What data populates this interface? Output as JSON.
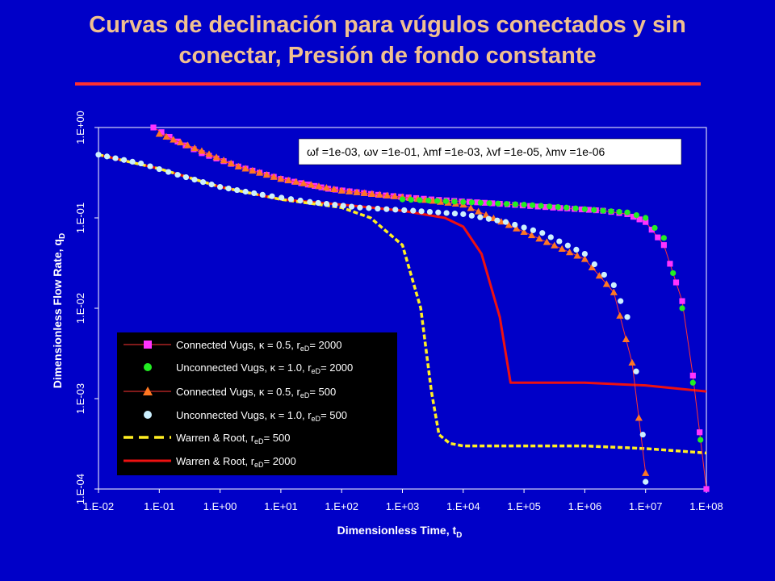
{
  "title_line1": "Curvas de declinación para vúgulos conectados y sin",
  "title_line2": "conectar,   Presión de fondo constante",
  "chart_data": {
    "type": "scatter",
    "title": "Curvas de declinación para vúgulos conectados y sin conectar,   Presión de fondo constante",
    "xlabel": "Dimensionless Time, t",
    "xlabel_sub": "D",
    "ylabel": "Dimensionless Flow Rate, q",
    "ylabel_sub": "D",
    "x_scale": "log",
    "y_scale": "log",
    "xlim": [
      0.01,
      100000000
    ],
    "ylim": [
      0.0001,
      1
    ],
    "x_ticks": [
      "1.E-02",
      "1.E-01",
      "1.E+00",
      "1.E+01",
      "1.E+02",
      "1.E+03",
      "1.E+04",
      "1.E+05",
      "1.E+06",
      "1.E+07",
      "1.E+08"
    ],
    "y_ticks": [
      "1.E-04",
      "1.E-03",
      "1.E-02",
      "1.E-01",
      "1.E+00"
    ],
    "grid": false,
    "annotation": "ωf =1e-03, ωv =1e-01, λmf =1e-03, λvf =1e-05, λmv =1e-06",
    "legend_position": "bottom-left",
    "series": [
      {
        "name": "Connected Vugs,    κ = 0.5, r",
        "name_sub": "eD",
        "name_tail": "= 2000",
        "marker": "square",
        "line": "thin",
        "color": "#ff33ff",
        "line_color": "#ff3333",
        "x": [
          0.08,
          0.2,
          0.5,
          2,
          10,
          60,
          400,
          3000,
          30000,
          300000,
          2000000,
          5000000,
          10000000,
          20000000,
          40000000,
          60000000,
          100000000
        ],
        "y": [
          1.0,
          0.7,
          0.52,
          0.37,
          0.27,
          0.21,
          0.18,
          0.16,
          0.145,
          0.13,
          0.12,
          0.11,
          0.09,
          0.05,
          0.012,
          0.0018,
          0.0001
        ]
      },
      {
        "name": "Unconnected Vugs, κ = 1.0, r",
        "name_sub": "eD",
        "name_tail": "= 2000",
        "marker": "circle",
        "line": "none",
        "color": "#22ee22",
        "x": [
          1000,
          10000,
          100000,
          500000,
          2000000,
          5000000,
          10000000,
          20000000,
          40000000,
          60000000,
          80000000
        ],
        "y": [
          0.16,
          0.15,
          0.14,
          0.13,
          0.12,
          0.115,
          0.1,
          0.06,
          0.01,
          0.0015,
          0.00035
        ]
      },
      {
        "name": "Connected Vugs,    κ = 0.5, r",
        "name_sub": "eD",
        "name_tail": "= 500",
        "marker": "triangle",
        "line": "thin",
        "color": "#ff7722",
        "line_color": "#ff3333",
        "x": [
          0.1,
          0.5,
          2,
          10,
          100,
          1000,
          10000,
          100000,
          1000000,
          3000000,
          6000000,
          10000000
        ],
        "y": [
          0.85,
          0.55,
          0.37,
          0.27,
          0.2,
          0.17,
          0.14,
          0.07,
          0.035,
          0.015,
          0.0025,
          0.00015
        ]
      },
      {
        "name": "Unconnected Vugs, κ = 1.0, r",
        "name_sub": "eD",
        "name_tail": "= 500",
        "marker": "circle",
        "line": "none",
        "color": "#ccf0ff",
        "x": [
          0.01,
          0.05,
          0.2,
          1,
          5,
          30,
          200,
          1500,
          10000,
          50000,
          200000,
          1000000,
          3000000,
          5000000,
          7000000,
          9000000,
          10000000
        ],
        "y": [
          0.5,
          0.4,
          0.3,
          0.22,
          0.18,
          0.15,
          0.13,
          0.12,
          0.11,
          0.09,
          0.068,
          0.04,
          0.018,
          0.008,
          0.002,
          0.0004,
          0.00012
        ]
      },
      {
        "name": "Warren & Root, r",
        "name_sub": "eD",
        "name_tail": "= 500",
        "marker": "none",
        "line": "dashed",
        "color": "#ffee22",
        "x": [
          0.01,
          0.1,
          1,
          10,
          100,
          300,
          1000,
          2000,
          3000,
          4000,
          6000,
          10000,
          100000,
          1000000,
          10000000,
          100000000
        ],
        "y": [
          0.5,
          0.35,
          0.22,
          0.16,
          0.13,
          0.1,
          0.05,
          0.01,
          0.0012,
          0.0004,
          0.00032,
          0.0003,
          0.0003,
          0.0003,
          0.00028,
          0.00025
        ]
      },
      {
        "name": "Warren & Root, r",
        "name_sub": "eD",
        "name_tail": "= 2000",
        "marker": "none",
        "line": "thick",
        "color": "#ee1111",
        "x": [
          0.01,
          0.1,
          1,
          10,
          100,
          1000,
          5000,
          10000,
          20000,
          40000,
          60000,
          100000,
          1000000,
          10000000,
          100000000
        ],
        "y": [
          0.5,
          0.35,
          0.22,
          0.16,
          0.14,
          0.12,
          0.1,
          0.08,
          0.04,
          0.008,
          0.0015,
          0.0015,
          0.0015,
          0.0014,
          0.0012
        ]
      }
    ]
  }
}
